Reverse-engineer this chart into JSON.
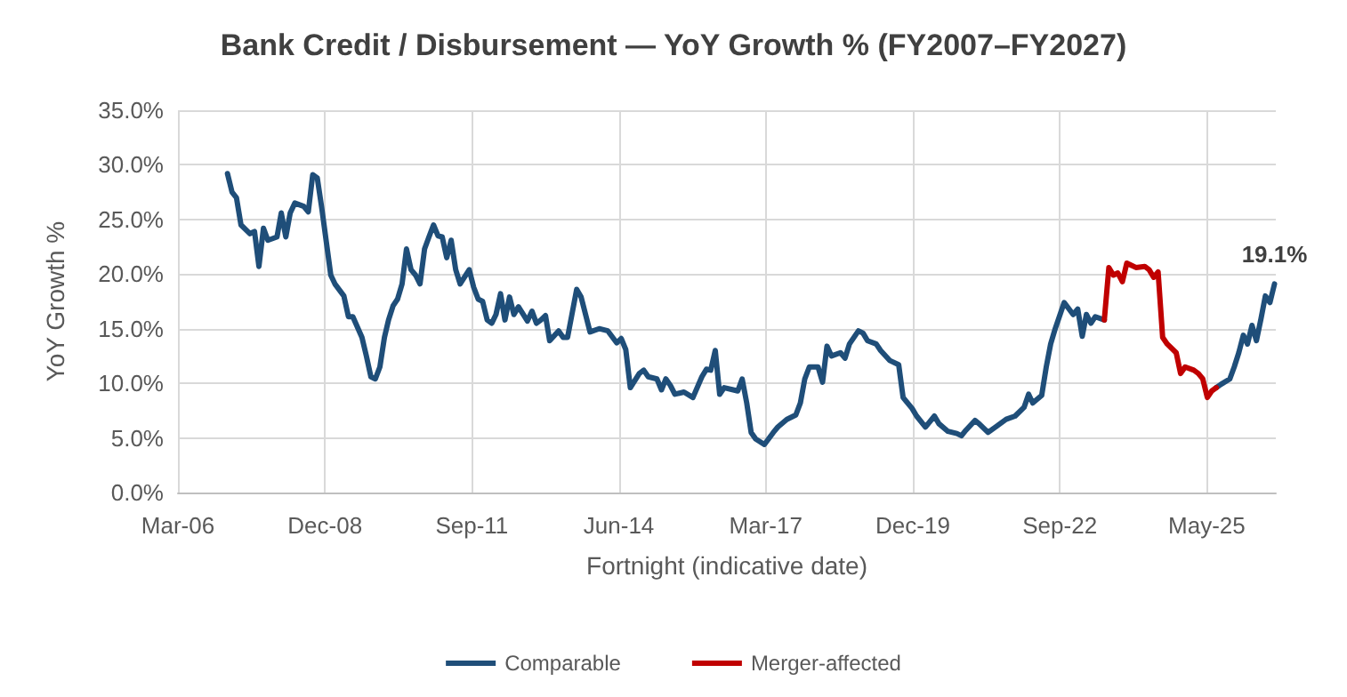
{
  "chart_data": {
    "type": "line",
    "title": "Bank Credit / Disbursement — YoY Growth % (FY2007–FY2027)",
    "xlabel": "Fortnight (indicative date)",
    "ylabel": "YoY Growth %",
    "xlim": [
      "2006-03-29",
      "2026-09-10"
    ],
    "xticks": [
      {
        "value": "2006-03-29",
        "label": "Mar-06"
      },
      {
        "value": "2008-12-23",
        "label": "Dec-08"
      },
      {
        "value": "2011-09-19",
        "label": "Sep-11"
      },
      {
        "value": "2014-06-15",
        "label": "Jun-14"
      },
      {
        "value": "2017-03-11",
        "label": "Mar-17"
      },
      {
        "value": "2019-12-06",
        "label": "Dec-19"
      },
      {
        "value": "2022-09-01",
        "label": "Sep-22"
      },
      {
        "value": "2025-05-28",
        "label": "May-25"
      }
    ],
    "ylim": [
      0,
      35
    ],
    "yticks": [
      {
        "value": 0,
        "label": "0.0%"
      },
      {
        "value": 5,
        "label": "5.0%"
      },
      {
        "value": 10,
        "label": "10.0%"
      },
      {
        "value": 15,
        "label": "15.0%"
      },
      {
        "value": 20,
        "label": "20.0%"
      },
      {
        "value": 25,
        "label": "25.0%"
      },
      {
        "value": 30,
        "label": "30.0%"
      },
      {
        "value": 35,
        "label": "35.0%"
      }
    ],
    "grid": true,
    "legend": "bottom",
    "marker": "none",
    "line_style": "solid",
    "annotations": [
      {
        "text": "19.1%",
        "x": "2026-09",
        "y": 19.1
      }
    ],
    "series": [
      {
        "name": "Comparable",
        "color": "#1f4e79",
        "x": [
          "2007-03",
          "2007-04",
          "2007-05",
          "2007-06",
          "2007-08",
          "2007-09",
          "2007-10",
          "2007-11",
          "2007-12",
          "2008-02",
          "2008-03",
          "2008-04",
          "2008-05",
          "2008-06",
          "2008-08",
          "2008-09",
          "2008-10",
          "2008-11",
          "2008-12",
          "2009-02",
          "2009-03",
          "2009-05",
          "2009-06",
          "2009-07",
          "2009-09",
          "2009-10",
          "2009-11",
          "2009-12",
          "2010-01",
          "2010-02",
          "2010-03",
          "2010-04",
          "2010-05",
          "2010-06",
          "2010-07",
          "2010-08",
          "2010-09",
          "2010-10",
          "2010-11",
          "2010-12",
          "2011-01",
          "2011-02",
          "2011-03",
          "2011-04",
          "2011-05",
          "2011-06",
          "2011-07",
          "2011-09",
          "2011-10",
          "2011-11",
          "2011-12",
          "2012-01",
          "2012-02",
          "2012-03",
          "2012-04",
          "2012-05",
          "2012-06",
          "2012-07",
          "2012-08",
          "2012-10",
          "2012-11",
          "2012-12",
          "2013-01",
          "2013-02",
          "2013-03",
          "2013-05",
          "2013-06",
          "2013-07",
          "2013-09",
          "2013-10",
          "2013-12",
          "2014-02",
          "2014-04",
          "2014-06",
          "2014-07",
          "2014-08",
          "2014-09",
          "2014-11",
          "2014-12",
          "2015-01",
          "2015-03",
          "2015-04",
          "2015-05",
          "2015-06",
          "2015-07",
          "2015-09",
          "2015-11",
          "2016-01",
          "2016-02",
          "2016-03",
          "2016-04",
          "2016-05",
          "2016-06",
          "2016-08",
          "2016-09",
          "2016-10",
          "2016-11",
          "2016-12",
          "2017-01",
          "2017-03",
          "2017-05",
          "2017-06",
          "2017-08",
          "2017-10",
          "2017-11",
          "2017-12",
          "2018-01",
          "2018-03",
          "2018-04",
          "2018-05",
          "2018-06",
          "2018-08",
          "2018-09",
          "2018-10",
          "2018-12",
          "2019-01",
          "2019-02",
          "2019-04",
          "2019-05",
          "2019-07",
          "2019-09",
          "2019-10",
          "2019-12",
          "2020-01",
          "2020-03",
          "2020-05",
          "2020-06",
          "2020-08",
          "2020-10",
          "2020-11",
          "2020-12",
          "2021-02",
          "2021-03",
          "2021-05",
          "2021-07",
          "2021-09",
          "2021-11",
          "2022-01",
          "2022-02",
          "2022-03",
          "2022-05",
          "2022-06",
          "2022-07",
          "2022-08",
          "2022-10",
          "2022-12",
          "2023-01",
          "2023-02",
          "2023-03",
          "2023-04",
          "2023-05",
          "2023-07",
          "2024-06",
          "2025-08",
          "2025-09",
          "2025-11",
          "2025-12",
          "2026-01",
          "2026-02",
          "2026-03",
          "2026-04",
          "2026-05",
          "2026-06",
          "2026-07",
          "2026-08",
          "2026-09"
        ],
        "values": [
          29.2,
          27.5,
          27.0,
          24.5,
          23.7,
          23.9,
          20.7,
          24.2,
          23.1,
          23.4,
          25.6,
          23.4,
          25.6,
          26.5,
          26.2,
          25.7,
          29.1,
          28.8,
          26.1,
          19.9,
          19.1,
          18.0,
          16.1,
          16.1,
          14.2,
          12.5,
          10.6,
          10.4,
          11.5,
          14.2,
          15.8,
          17.1,
          17.7,
          19.1,
          22.3,
          20.4,
          19.9,
          19.1,
          22.3,
          23.4,
          24.5,
          23.5,
          23.4,
          21.5,
          23.1,
          20.4,
          19.1,
          20.4,
          18.8,
          17.7,
          17.5,
          15.8,
          15.5,
          16.3,
          18.2,
          15.8,
          17.9,
          16.3,
          17.0,
          15.7,
          16.6,
          15.5,
          15.8,
          16.2,
          13.9,
          14.8,
          14.2,
          14.2,
          18.6,
          17.9,
          14.7,
          15.0,
          14.8,
          13.7,
          14.1,
          13.1,
          9.6,
          10.9,
          11.2,
          10.6,
          10.4,
          9.4,
          10.4,
          9.8,
          9.0,
          9.2,
          8.7,
          10.6,
          11.3,
          11.2,
          13.0,
          9.0,
          9.6,
          9.4,
          9.3,
          10.4,
          8.2,
          5.5,
          4.9,
          4.4,
          5.5,
          6.0,
          6.7,
          7.1,
          8.2,
          10.4,
          11.5,
          11.5,
          10.1,
          13.4,
          12.5,
          12.8,
          12.3,
          13.6,
          14.8,
          14.6,
          13.9,
          13.6,
          13.0,
          12.1,
          11.7,
          8.7,
          7.7,
          7.0,
          6.0,
          7.0,
          6.3,
          5.6,
          5.4,
          5.2,
          5.7,
          6.6,
          6.3,
          5.5,
          6.1,
          6.7,
          7.0,
          7.8,
          9.0,
          8.2,
          8.9,
          11.5,
          13.6,
          15.0,
          17.4,
          16.3,
          16.8,
          14.3,
          16.3,
          15.5,
          16.1,
          15.8,
          null,
          9.6,
          9.9,
          10.4,
          11.5,
          12.8,
          14.4,
          13.6,
          15.3,
          13.9,
          15.9,
          18.0,
          17.4,
          19.1
        ]
      },
      {
        "name": "Merger-affected",
        "color": "#c00000",
        "x": [
          "2023-07",
          "2023-08",
          "2023-09",
          "2023-10",
          "2023-11",
          "2023-12",
          "2024-02",
          "2024-04",
          "2024-05",
          "2024-06",
          "2024-07",
          "2024-08",
          "2024-09",
          "2024-11",
          "2024-12",
          "2025-01",
          "2025-03",
          "2025-04",
          "2025-05",
          "2025-06",
          "2025-07",
          "2025-08"
        ],
        "values": [
          15.8,
          20.6,
          19.9,
          20.1,
          19.3,
          21.0,
          20.6,
          20.7,
          20.4,
          19.7,
          20.2,
          14.2,
          13.6,
          12.8,
          10.9,
          11.5,
          11.2,
          10.9,
          10.4,
          8.7,
          9.3,
          9.6
        ]
      }
    ]
  }
}
